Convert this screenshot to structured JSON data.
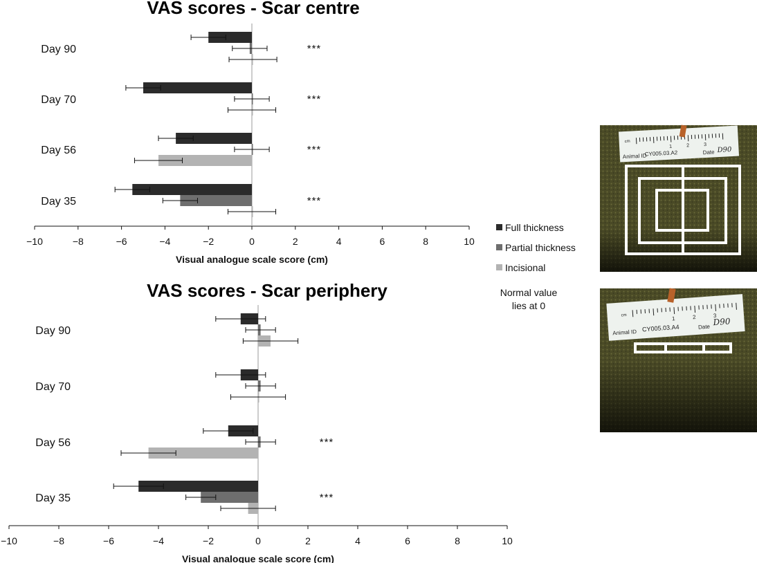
{
  "legend": {
    "items": [
      {
        "label": "Full thickness",
        "color": "#2b2b2b"
      },
      {
        "label": "Partial thickness",
        "color": "#6e6e6e"
      },
      {
        "label": "Incisional",
        "color": "#b3b3b3"
      }
    ],
    "note_line1": "Normal value",
    "note_line2": "lies at 0"
  },
  "photos": {
    "top": {
      "id_label": "Animal ID",
      "id_value": "CY005.03.A2",
      "date_label": "Date",
      "date_value": "D90",
      "ruler_unit": "cm",
      "ruler_numbers": [
        "1",
        "2",
        "3"
      ]
    },
    "bottom": {
      "id_label": "Animal ID",
      "id_value": "CY005.03.A4",
      "date_label": "Date",
      "date_value": "D90",
      "ruler_unit": "cm",
      "ruler_numbers": [
        "1",
        "2",
        "3"
      ]
    }
  },
  "chart_data": [
    {
      "type": "bar",
      "orientation": "horizontal",
      "title": "VAS scores - Scar centre",
      "xlabel": "Visual analogue scale score (cm)",
      "xlim": [
        -10,
        10
      ],
      "xticks": [
        -10,
        -8,
        -6,
        -4,
        -2,
        0,
        2,
        4,
        6,
        8,
        10
      ],
      "categories": [
        "Day 90",
        "Day 70",
        "Day 56",
        "Day 35"
      ],
      "significance": [
        "***",
        "***",
        "***",
        "***"
      ],
      "series": [
        {
          "name": "Full thickness",
          "values": [
            -2.0,
            -5.0,
            -3.5,
            -5.5
          ],
          "errors": [
            0.8,
            0.8,
            0.8,
            0.8
          ]
        },
        {
          "name": "Partial thickness",
          "values": [
            -0.1,
            0.0,
            0.0,
            -3.3
          ],
          "errors": [
            0.8,
            0.8,
            0.8,
            0.8
          ]
        },
        {
          "name": "Incisional",
          "values": [
            0.05,
            0.0,
            -4.3,
            0.0
          ],
          "errors": [
            1.1,
            1.1,
            1.1,
            1.1
          ]
        }
      ]
    },
    {
      "type": "bar",
      "orientation": "horizontal",
      "title": "VAS scores - Scar periphery",
      "xlabel": "Visual analogue scale score (cm)",
      "xlim": [
        -10,
        10
      ],
      "xticks": [
        -10,
        -8,
        -6,
        -4,
        -2,
        0,
        2,
        4,
        6,
        8,
        10
      ],
      "categories": [
        "Day 90",
        "Day 70",
        "Day 56",
        "Day 35"
      ],
      "significance": [
        "",
        "",
        "***",
        "***"
      ],
      "series": [
        {
          "name": "Full thickness",
          "values": [
            -0.7,
            -0.7,
            -1.2,
            -4.8
          ],
          "errors": [
            1.0,
            1.0,
            1.0,
            1.0
          ]
        },
        {
          "name": "Partial thickness",
          "values": [
            0.1,
            0.1,
            0.1,
            -2.3
          ],
          "errors": [
            0.6,
            0.6,
            0.6,
            0.6
          ]
        },
        {
          "name": "Incisional",
          "values": [
            0.5,
            0.0,
            -4.4,
            -0.4
          ],
          "errors": [
            1.1,
            1.1,
            1.1,
            1.1
          ]
        }
      ]
    }
  ]
}
